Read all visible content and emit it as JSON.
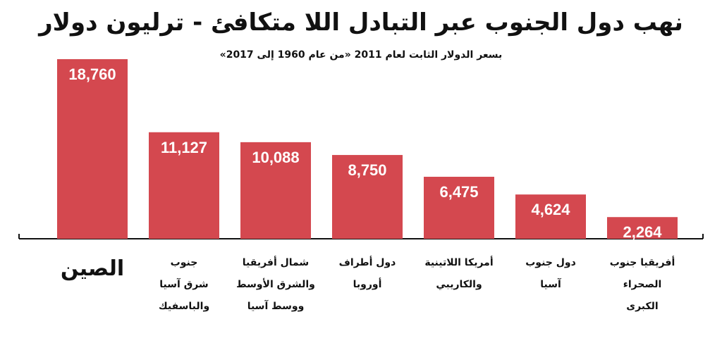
{
  "chart_data": {
    "type": "bar",
    "title": "نهب دول الجنوب عبر التبادل اللا متكافئ - ترليون دولار",
    "subtitle": "بسعر الدولار الثابت لعام 2011  «من عام 1960 إلى 2017»",
    "categories": [
      [
        "الصين"
      ],
      [
        "جنوب",
        "شرق آسيا",
        "والباسفيك"
      ],
      [
        "شمال أفريقيا",
        "والشرق الأوسط",
        "ووسط آسيا"
      ],
      [
        "دول أطراف",
        "أوروبا"
      ],
      [
        "أمريكا اللاتينية",
        "والكاريبي"
      ],
      [
        "دول جنوب",
        "آسيا"
      ],
      [
        "أفريقيا جنوب",
        "الصحراء",
        "الكبرى"
      ]
    ],
    "values": [
      18760,
      11127,
      10088,
      8750,
      6475,
      4624,
      2264
    ],
    "value_labels": [
      "18,760",
      "11,127",
      "10,088",
      "8,750",
      "6,475",
      "4,624",
      "2,264"
    ],
    "ylim": [
      0,
      18760
    ],
    "xlabel": "",
    "ylabel": "",
    "grid": false,
    "bar_color": "#d4484f",
    "label_color": "#ffffff"
  }
}
